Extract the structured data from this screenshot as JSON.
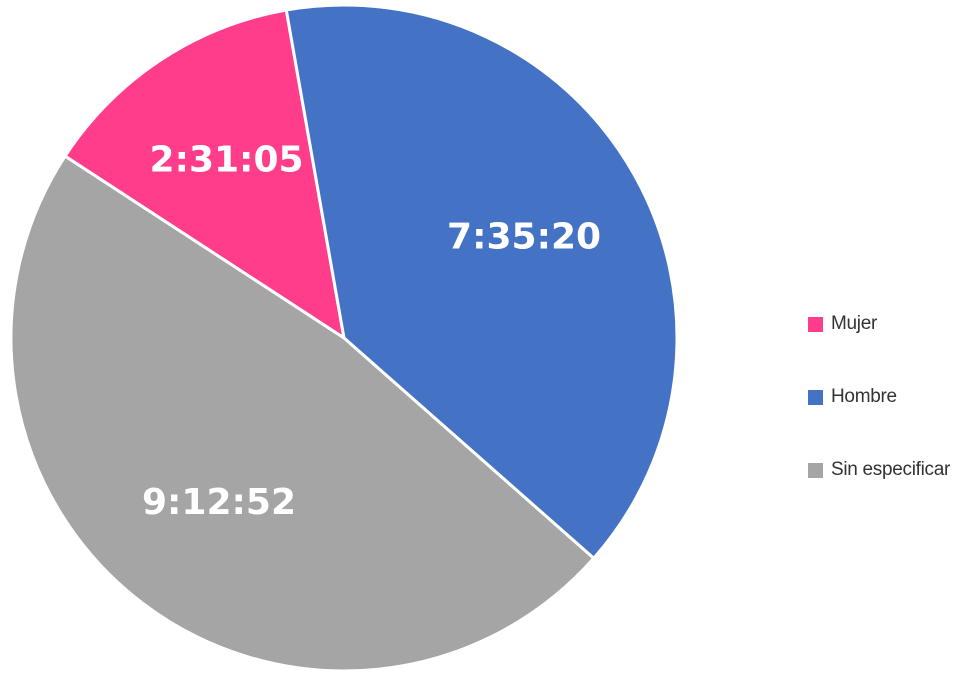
{
  "chart_data": {
    "type": "pie",
    "title": "",
    "unit": "h:mm:ss",
    "legend_position": "right",
    "slices": [
      {
        "name": "Mujer",
        "value": "2:31:05",
        "seconds": 9065,
        "color": "#FF3D8B"
      },
      {
        "name": "Hombre",
        "value": "7:35:20",
        "seconds": 27320,
        "color": "#4472C4"
      },
      {
        "name": "Sin especificar",
        "value": "9:12:52",
        "seconds": 33172,
        "color": "#A5A5A5"
      }
    ],
    "legend": [
      {
        "label": "Mujer",
        "color": "#FF3D8B"
      },
      {
        "label": "Hombre",
        "color": "#4472C4"
      },
      {
        "label": "Sin especificar",
        "color": "#A5A5A5"
      }
    ]
  }
}
